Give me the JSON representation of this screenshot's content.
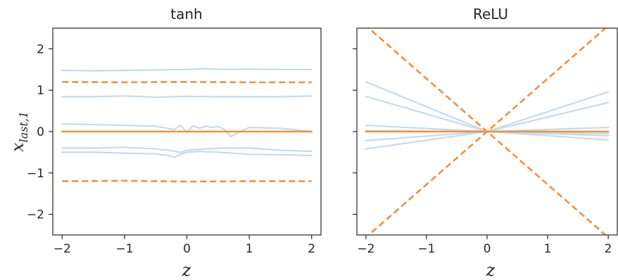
{
  "chart_data": [
    {
      "type": "line",
      "title": "tanh",
      "xlabel": "z",
      "ylabel": "x",
      "ylabel_subscript": "last,1",
      "xlim": [
        -2.15,
        2.15
      ],
      "ylim": [
        -2.5,
        2.5
      ],
      "xticks": [
        -2,
        -1,
        0,
        1,
        2
      ],
      "xtick_labels": [
        "−2",
        "−1",
        "0",
        "1",
        "2"
      ],
      "yticks": [
        2,
        1,
        0,
        -1,
        -2
      ],
      "ytick_labels": [
        "2",
        "1",
        "0",
        "−1",
        "−2"
      ],
      "grid": false,
      "series": [
        {
          "role": "sample",
          "color": "#c6dbe9",
          "x": [
            -2,
            -1.5,
            -1,
            -0.5,
            0,
            0.3,
            0.6,
            1,
            1.5,
            2
          ],
          "y": [
            1.48,
            1.47,
            1.48,
            1.49,
            1.5,
            1.52,
            1.5,
            1.51,
            1.5,
            1.5
          ]
        },
        {
          "role": "sample",
          "color": "#c6dbe9",
          "x": [
            -2,
            -1.5,
            -1,
            -0.5,
            0,
            0.5,
            1,
            1.5,
            2
          ],
          "y": [
            0.84,
            0.84,
            0.86,
            0.83,
            0.85,
            0.84,
            0.84,
            0.84,
            0.86
          ]
        },
        {
          "role": "sample",
          "color": "#c6dbe9",
          "x": [
            -2,
            -1.5,
            -1,
            -0.5,
            -0.2,
            -0.1,
            0,
            0.1,
            0.2,
            0.3,
            0.4,
            0.5,
            0.6,
            0.7,
            1,
            1.5,
            2
          ],
          "y": [
            0.18,
            0.17,
            0.15,
            0.13,
            0.05,
            0.15,
            -0.02,
            0.14,
            0.08,
            0.13,
            0.1,
            0.12,
            0.05,
            -0.12,
            0.1,
            0.08,
            0.0
          ]
        },
        {
          "role": "sample",
          "color": "#c6dbe9",
          "x": [
            -2,
            -1.5,
            -1,
            -0.5,
            -0.3,
            -0.1,
            0,
            0.3,
            0.6,
            1,
            1.5,
            2
          ],
          "y": [
            -0.4,
            -0.4,
            -0.38,
            -0.42,
            -0.45,
            -0.5,
            -0.45,
            -0.42,
            -0.4,
            -0.4,
            -0.45,
            -0.48
          ]
        },
        {
          "role": "sample",
          "color": "#c6dbe9",
          "x": [
            -2,
            -1.5,
            -1,
            -0.5,
            -0.3,
            -0.2,
            -0.1,
            0,
            0.2,
            0.5,
            1,
            1.5,
            2
          ],
          "y": [
            -0.5,
            -0.5,
            -0.52,
            -0.54,
            -0.58,
            -0.62,
            -0.55,
            -0.5,
            -0.48,
            -0.5,
            -0.55,
            -0.56,
            -0.58
          ]
        },
        {
          "role": "mean",
          "color": "#f0913c",
          "dashed": false,
          "x": [
            -2,
            -1,
            0,
            1,
            2
          ],
          "y": [
            0.0,
            0.0,
            0.0,
            0.0,
            0.0
          ]
        },
        {
          "role": "bound",
          "color": "#f0913c",
          "dashed": true,
          "x": [
            -2,
            -1,
            0,
            1,
            2
          ],
          "y": [
            1.2,
            1.19,
            1.2,
            1.19,
            1.19
          ]
        },
        {
          "role": "bound",
          "color": "#f0913c",
          "dashed": true,
          "x": [
            -2,
            -1,
            0,
            1,
            2
          ],
          "y": [
            -1.2,
            -1.19,
            -1.21,
            -1.2,
            -1.2
          ]
        }
      ]
    },
    {
      "type": "line",
      "title": "ReLU",
      "xlabel": "z",
      "ylabel": "",
      "xlim": [
        -2.15,
        2.15
      ],
      "ylim": [
        -2.5,
        2.5
      ],
      "xticks": [
        -2,
        -1,
        0,
        1,
        2
      ],
      "xtick_labels": [
        "−2",
        "−1",
        "0",
        "1",
        "2"
      ],
      "yticks": [
        2,
        1,
        0,
        -1,
        -2
      ],
      "ytick_labels": [],
      "grid": false,
      "series": [
        {
          "role": "sample",
          "color": "#c6dbe9",
          "x": [
            -2,
            0,
            2
          ],
          "y": [
            1.2,
            0.0,
            -0.05
          ]
        },
        {
          "role": "sample",
          "color": "#c6dbe9",
          "x": [
            -2,
            0,
            2
          ],
          "y": [
            0.85,
            0.0,
            -0.1
          ]
        },
        {
          "role": "sample",
          "color": "#c6dbe9",
          "x": [
            -2,
            0,
            2
          ],
          "y": [
            0.15,
            0.0,
            0.96
          ]
        },
        {
          "role": "sample",
          "color": "#c6dbe9",
          "x": [
            -2,
            0,
            2
          ],
          "y": [
            -0.22,
            0.0,
            0.7
          ]
        },
        {
          "role": "sample",
          "color": "#c6dbe9",
          "x": [
            -2,
            0,
            2
          ],
          "y": [
            -0.42,
            0.0,
            0.1
          ]
        },
        {
          "role": "sample",
          "color": "#c6dbe9",
          "x": [
            -2,
            0,
            2
          ],
          "y": [
            0.02,
            0.0,
            -0.2
          ]
        },
        {
          "role": "mean",
          "color": "#f0913c",
          "dashed": false,
          "x": [
            -2,
            2
          ],
          "y": [
            0.0,
            0.0
          ]
        },
        {
          "role": "bound",
          "color": "#f0913c",
          "dashed": true,
          "x": [
            -2.15,
            2.15
          ],
          "y": [
            -2.75,
            2.75
          ]
        },
        {
          "role": "bound",
          "color": "#f0913c",
          "dashed": true,
          "x": [
            -2.15,
            2.15
          ],
          "y": [
            2.75,
            -2.75
          ]
        }
      ]
    }
  ]
}
